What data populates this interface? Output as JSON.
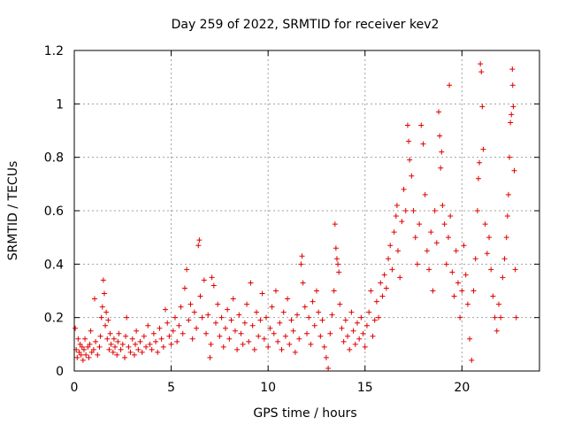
{
  "chart_data": {
    "type": "scatter",
    "title": "Day 259 of 2022, SRMTID for receiver kev2",
    "xlabel": "GPS time / hours",
    "ylabel": "SRMTID / TECUs",
    "xlim": [
      0,
      24
    ],
    "ylim": [
      0,
      1.2
    ],
    "xticks": [
      0,
      5,
      10,
      15,
      20
    ],
    "xtick_labels": [
      "0",
      "5",
      "10",
      "15",
      "20"
    ],
    "yticks": [
      0,
      0.2,
      0.4,
      0.6,
      0.8,
      1.0,
      1.2
    ],
    "ytick_labels": [
      "0",
      "0.2",
      "0.4",
      "0.6",
      "0.8",
      "1",
      "1.2"
    ],
    "grid": true,
    "marker": "+",
    "series": [
      {
        "name": "kev2",
        "color": "#e00000",
        "points": [
          [
            0.05,
            0.16
          ],
          [
            0.1,
            0.08
          ],
          [
            0.15,
            0.05
          ],
          [
            0.2,
            0.12
          ],
          [
            0.25,
            0.07
          ],
          [
            0.3,
            0.1
          ],
          [
            0.35,
            0.06
          ],
          [
            0.4,
            0.09
          ],
          [
            0.45,
            0.04
          ],
          [
            0.5,
            0.08
          ],
          [
            0.55,
            0.12
          ],
          [
            0.6,
            0.06
          ],
          [
            0.7,
            0.09
          ],
          [
            0.75,
            0.05
          ],
          [
            0.8,
            0.1
          ],
          [
            0.85,
            0.15
          ],
          [
            0.9,
            0.07
          ],
          [
            1.0,
            0.08
          ],
          [
            1.05,
            0.27
          ],
          [
            1.1,
            0.11
          ],
          [
            1.2,
            0.06
          ],
          [
            1.3,
            0.09
          ],
          [
            1.35,
            0.13
          ],
          [
            1.4,
            0.2
          ],
          [
            1.45,
            0.24
          ],
          [
            1.5,
            0.34
          ],
          [
            1.55,
            0.29
          ],
          [
            1.6,
            0.17
          ],
          [
            1.65,
            0.22
          ],
          [
            1.7,
            0.12
          ],
          [
            1.75,
            0.19
          ],
          [
            1.8,
            0.08
          ],
          [
            1.85,
            0.14
          ],
          [
            1.9,
            0.1
          ],
          [
            2.0,
            0.07
          ],
          [
            2.05,
            0.12
          ],
          [
            2.1,
            0.09
          ],
          [
            2.2,
            0.06
          ],
          [
            2.25,
            0.11
          ],
          [
            2.3,
            0.14
          ],
          [
            2.4,
            0.08
          ],
          [
            2.5,
            0.1
          ],
          [
            2.6,
            0.05
          ],
          [
            2.65,
            0.13
          ],
          [
            2.7,
            0.2
          ],
          [
            2.8,
            0.09
          ],
          [
            2.9,
            0.07
          ],
          [
            3.0,
            0.12
          ],
          [
            3.1,
            0.06
          ],
          [
            3.15,
            0.1
          ],
          [
            3.2,
            0.15
          ],
          [
            3.3,
            0.08
          ],
          [
            3.4,
            0.11
          ],
          [
            3.5,
            0.07
          ],
          [
            3.6,
            0.13
          ],
          [
            3.7,
            0.09
          ],
          [
            3.8,
            0.17
          ],
          [
            3.9,
            0.1
          ],
          [
            4.0,
            0.08
          ],
          [
            4.1,
            0.14
          ],
          [
            4.2,
            0.11
          ],
          [
            4.3,
            0.07
          ],
          [
            4.4,
            0.16
          ],
          [
            4.5,
            0.12
          ],
          [
            4.6,
            0.09
          ],
          [
            4.7,
            0.23
          ],
          [
            4.8,
            0.18
          ],
          [
            4.9,
            0.13
          ],
          [
            5.0,
            0.1
          ],
          [
            5.1,
            0.15
          ],
          [
            5.2,
            0.2
          ],
          [
            5.3,
            0.11
          ],
          [
            5.4,
            0.17
          ],
          [
            5.5,
            0.24
          ],
          [
            5.6,
            0.14
          ],
          [
            5.7,
            0.31
          ],
          [
            5.8,
            0.38
          ],
          [
            5.9,
            0.19
          ],
          [
            6.0,
            0.25
          ],
          [
            6.1,
            0.12
          ],
          [
            6.2,
            0.22
          ],
          [
            6.3,
            0.16
          ],
          [
            6.4,
            0.47
          ],
          [
            6.45,
            0.49
          ],
          [
            6.5,
            0.28
          ],
          [
            6.6,
            0.2
          ],
          [
            6.7,
            0.34
          ],
          [
            6.8,
            0.14
          ],
          [
            6.9,
            0.21
          ],
          [
            7.0,
            0.05
          ],
          [
            7.05,
            0.1
          ],
          [
            7.1,
            0.35
          ],
          [
            7.2,
            0.32
          ],
          [
            7.3,
            0.18
          ],
          [
            7.4,
            0.25
          ],
          [
            7.5,
            0.13
          ],
          [
            7.6,
            0.2
          ],
          [
            7.7,
            0.09
          ],
          [
            7.8,
            0.16
          ],
          [
            7.9,
            0.23
          ],
          [
            8.0,
            0.12
          ],
          [
            8.1,
            0.19
          ],
          [
            8.2,
            0.27
          ],
          [
            8.3,
            0.15
          ],
          [
            8.4,
            0.08
          ],
          [
            8.5,
            0.21
          ],
          [
            8.6,
            0.14
          ],
          [
            8.7,
            0.1
          ],
          [
            8.8,
            0.18
          ],
          [
            8.9,
            0.25
          ],
          [
            9.0,
            0.11
          ],
          [
            9.1,
            0.33
          ],
          [
            9.2,
            0.17
          ],
          [
            9.3,
            0.08
          ],
          [
            9.4,
            0.22
          ],
          [
            9.5,
            0.13
          ],
          [
            9.6,
            0.19
          ],
          [
            9.7,
            0.29
          ],
          [
            9.8,
            0.12
          ],
          [
            9.9,
            0.2
          ],
          [
            10.0,
            0.09
          ],
          [
            10.1,
            0.16
          ],
          [
            10.2,
            0.24
          ],
          [
            10.3,
            0.14
          ],
          [
            10.4,
            0.3
          ],
          [
            10.5,
            0.11
          ],
          [
            10.6,
            0.18
          ],
          [
            10.7,
            0.08
          ],
          [
            10.8,
            0.22
          ],
          [
            10.9,
            0.13
          ],
          [
            11.0,
            0.27
          ],
          [
            11.1,
            0.1
          ],
          [
            11.2,
            0.19
          ],
          [
            11.3,
            0.15
          ],
          [
            11.4,
            0.07
          ],
          [
            11.5,
            0.21
          ],
          [
            11.6,
            0.12
          ],
          [
            11.7,
            0.4
          ],
          [
            11.75,
            0.43
          ],
          [
            11.8,
            0.33
          ],
          [
            11.9,
            0.24
          ],
          [
            12.0,
            0.14
          ],
          [
            12.1,
            0.2
          ],
          [
            12.2,
            0.1
          ],
          [
            12.3,
            0.26
          ],
          [
            12.4,
            0.17
          ],
          [
            12.5,
            0.3
          ],
          [
            12.6,
            0.22
          ],
          [
            12.7,
            0.13
          ],
          [
            12.8,
            0.19
          ],
          [
            12.9,
            0.09
          ],
          [
            13.0,
            0.05
          ],
          [
            13.1,
            0.01
          ],
          [
            13.2,
            0.14
          ],
          [
            13.3,
            0.21
          ],
          [
            13.4,
            0.3
          ],
          [
            13.45,
            0.55
          ],
          [
            13.5,
            0.46
          ],
          [
            13.55,
            0.42
          ],
          [
            13.6,
            0.4
          ],
          [
            13.65,
            0.37
          ],
          [
            13.7,
            0.25
          ],
          [
            13.8,
            0.16
          ],
          [
            13.9,
            0.11
          ],
          [
            14.0,
            0.19
          ],
          [
            14.1,
            0.13
          ],
          [
            14.2,
            0.08
          ],
          [
            14.3,
            0.22
          ],
          [
            14.4,
            0.15
          ],
          [
            14.5,
            0.1
          ],
          [
            14.6,
            0.18
          ],
          [
            14.7,
            0.12
          ],
          [
            14.8,
            0.2
          ],
          [
            14.9,
            0.14
          ],
          [
            15.0,
            0.09
          ],
          [
            15.1,
            0.17
          ],
          [
            15.2,
            0.22
          ],
          [
            15.3,
            0.3
          ],
          [
            15.4,
            0.13
          ],
          [
            15.5,
            0.19
          ],
          [
            15.6,
            0.26
          ],
          [
            15.7,
            0.2
          ],
          [
            15.8,
            0.33
          ],
          [
            15.9,
            0.28
          ],
          [
            16.0,
            0.36
          ],
          [
            16.1,
            0.31
          ],
          [
            16.2,
            0.42
          ],
          [
            16.3,
            0.47
          ],
          [
            16.4,
            0.38
          ],
          [
            16.5,
            0.52
          ],
          [
            16.6,
            0.58
          ],
          [
            16.65,
            0.62
          ],
          [
            16.7,
            0.45
          ],
          [
            16.8,
            0.35
          ],
          [
            16.9,
            0.56
          ],
          [
            17.0,
            0.68
          ],
          [
            17.1,
            0.6
          ],
          [
            17.2,
            0.92
          ],
          [
            17.25,
            0.86
          ],
          [
            17.3,
            0.79
          ],
          [
            17.4,
            0.73
          ],
          [
            17.5,
            0.6
          ],
          [
            17.6,
            0.5
          ],
          [
            17.7,
            0.4
          ],
          [
            17.8,
            0.55
          ],
          [
            17.9,
            0.92
          ],
          [
            18.0,
            0.85
          ],
          [
            18.1,
            0.66
          ],
          [
            18.2,
            0.45
          ],
          [
            18.3,
            0.38
          ],
          [
            18.4,
            0.52
          ],
          [
            18.5,
            0.3
          ],
          [
            18.6,
            0.6
          ],
          [
            18.7,
            0.48
          ],
          [
            18.8,
            0.97
          ],
          [
            18.85,
            0.88
          ],
          [
            18.9,
            0.76
          ],
          [
            18.95,
            0.82
          ],
          [
            19.0,
            0.62
          ],
          [
            19.1,
            0.55
          ],
          [
            19.2,
            0.4
          ],
          [
            19.3,
            0.5
          ],
          [
            19.35,
            1.07
          ],
          [
            19.4,
            0.58
          ],
          [
            19.5,
            0.37
          ],
          [
            19.6,
            0.28
          ],
          [
            19.7,
            0.45
          ],
          [
            19.8,
            0.33
          ],
          [
            19.9,
            0.2
          ],
          [
            20.0,
            0.3
          ],
          [
            20.1,
            0.47
          ],
          [
            20.2,
            0.36
          ],
          [
            20.3,
            0.25
          ],
          [
            20.4,
            0.12
          ],
          [
            20.5,
            0.04
          ],
          [
            20.6,
            0.3
          ],
          [
            20.7,
            0.42
          ],
          [
            20.8,
            0.6
          ],
          [
            20.85,
            0.72
          ],
          [
            20.9,
            0.78
          ],
          [
            20.95,
            1.15
          ],
          [
            21.0,
            1.12
          ],
          [
            21.05,
            0.99
          ],
          [
            21.1,
            0.83
          ],
          [
            21.2,
            0.55
          ],
          [
            21.3,
            0.44
          ],
          [
            21.4,
            0.5
          ],
          [
            21.5,
            0.38
          ],
          [
            21.6,
            0.28
          ],
          [
            21.7,
            0.2
          ],
          [
            21.8,
            0.15
          ],
          [
            21.9,
            0.25
          ],
          [
            22.0,
            0.2
          ],
          [
            22.1,
            0.35
          ],
          [
            22.2,
            0.42
          ],
          [
            22.3,
            0.5
          ],
          [
            22.35,
            0.58
          ],
          [
            22.4,
            0.66
          ],
          [
            22.45,
            0.8
          ],
          [
            22.5,
            0.93
          ],
          [
            22.55,
            0.96
          ],
          [
            22.6,
            1.13
          ],
          [
            22.62,
            1.07
          ],
          [
            22.65,
            0.99
          ],
          [
            22.7,
            0.75
          ],
          [
            22.75,
            0.38
          ],
          [
            22.8,
            0.2
          ]
        ]
      }
    ]
  }
}
